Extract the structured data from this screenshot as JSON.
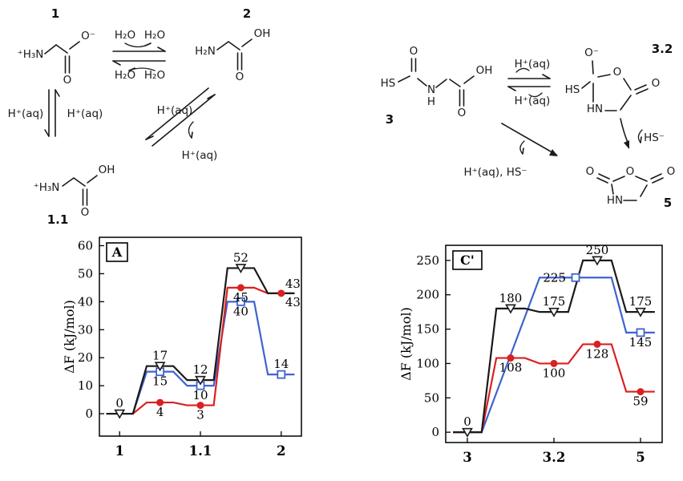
{
  "figure": {
    "background": "#ffffff"
  },
  "schemes": {
    "glycine": {
      "c1": "1",
      "c2": "2",
      "c11": "1.1",
      "ammonium": "⁺H₃N",
      "amine": "H₂N",
      "o": "O",
      "o_minus": "O⁻",
      "oh": "OH",
      "water": "H₂O",
      "proton": "H⁺(aq)"
    },
    "nca": {
      "c3": "3",
      "c32": "3.2",
      "c5": "5",
      "hs": "HS",
      "o": "O",
      "o_minus": "O⁻",
      "oh": "OH",
      "n": "N",
      "h": "H",
      "hn": "HN",
      "proton": "H⁺(aq)",
      "hs_minus": "HS⁻",
      "proton_hs": "H⁺(aq), HS⁻"
    }
  },
  "chart_data": [
    {
      "type": "line",
      "panel": "A",
      "ylabel": "ΔF (kJ/mol)",
      "ylim": [
        -8,
        63
      ],
      "yticks": [
        0,
        10,
        20,
        30,
        40,
        50,
        60
      ],
      "categories": [
        "1",
        "1.1",
        "2"
      ],
      "xtick_slots": [
        0,
        2,
        4
      ],
      "n_slots": 5,
      "grid": false,
      "legend": "none",
      "series": [
        {
          "name": "blue",
          "color": "#3f63cf",
          "marker": "square",
          "plateaus": [
            {
              "slots": [
                0
              ],
              "value": 0,
              "marker": false
            },
            {
              "slots": [
                1
              ],
              "value": 15,
              "label": "15",
              "label_pos": "below",
              "marker": true
            },
            {
              "slots": [
                2
              ],
              "value": 10,
              "label": "10",
              "label_pos": "below",
              "marker": true
            },
            {
              "slots": [
                3
              ],
              "value": 40,
              "label": "40",
              "label_pos": "below",
              "marker": true
            },
            {
              "slots": [
                4
              ],
              "value": 14,
              "label": "14",
              "label_pos": "above",
              "marker": true
            }
          ]
        },
        {
          "name": "red",
          "color": "#d92121",
          "marker": "circle",
          "plateaus": [
            {
              "slots": [
                0
              ],
              "value": 0,
              "marker": false
            },
            {
              "slots": [
                1
              ],
              "value": 4,
              "label": "4",
              "label_pos": "below",
              "marker": true
            },
            {
              "slots": [
                2
              ],
              "value": 3,
              "label": "3",
              "label_pos": "below",
              "marker": true
            },
            {
              "slots": [
                3
              ],
              "value": 45,
              "label": "45",
              "label_pos": "below",
              "marker": true
            },
            {
              "slots": [
                4
              ],
              "value": 43,
              "label": "43",
              "label_pos": "right-below",
              "marker": true
            }
          ]
        },
        {
          "name": "black",
          "color": "#1a1a1a",
          "marker": "triangle-down",
          "plateaus": [
            {
              "slots": [
                0
              ],
              "value": 0,
              "label": "0",
              "label_pos": "above",
              "marker": true
            },
            {
              "slots": [
                1
              ],
              "value": 17,
              "label": "17",
              "label_pos": "above",
              "marker": true
            },
            {
              "slots": [
                2
              ],
              "value": 12,
              "label": "12",
              "label_pos": "above",
              "marker": true
            },
            {
              "slots": [
                3
              ],
              "value": 52,
              "label": "52",
              "label_pos": "above",
              "marker": true
            },
            {
              "slots": [
                4
              ],
              "value": 43,
              "label": "43",
              "label_pos": "right-above",
              "marker": false
            }
          ]
        }
      ]
    },
    {
      "type": "line",
      "panel": "C'",
      "ylabel": "ΔF (kJ/mol)",
      "ylim": [
        -15,
        272
      ],
      "yticks": [
        0,
        50,
        100,
        150,
        200,
        250
      ],
      "categories": [
        "3",
        "3.2",
        "5"
      ],
      "xtick_slots": [
        0,
        2,
        4
      ],
      "n_slots": 5,
      "grid": false,
      "legend": "none",
      "series": [
        {
          "name": "blue",
          "color": "#3f63cf",
          "marker": "square",
          "plateaus": [
            {
              "slots": [
                0
              ],
              "value": 0,
              "marker": false
            },
            {
              "slots": [
                2,
                3
              ],
              "value": 225,
              "label": "225",
              "label_pos": "marker-left",
              "marker": true
            },
            {
              "slots": [
                4
              ],
              "value": 145,
              "label": "145",
              "label_pos": "below",
              "marker": true
            }
          ]
        },
        {
          "name": "red",
          "color": "#d92121",
          "marker": "circle",
          "plateaus": [
            {
              "slots": [
                0
              ],
              "value": 0,
              "marker": false
            },
            {
              "slots": [
                1
              ],
              "value": 108,
              "label": "108",
              "label_pos": "below",
              "marker": true
            },
            {
              "slots": [
                2
              ],
              "value": 100,
              "label": "100",
              "label_pos": "below",
              "marker": true
            },
            {
              "slots": [
                3
              ],
              "value": 128,
              "label": "128",
              "label_pos": "below",
              "marker": true
            },
            {
              "slots": [
                4
              ],
              "value": 59,
              "label": "59",
              "label_pos": "below",
              "marker": true
            }
          ]
        },
        {
          "name": "black",
          "color": "#1a1a1a",
          "marker": "triangle-down",
          "plateaus": [
            {
              "slots": [
                0
              ],
              "value": 0,
              "label": "0",
              "label_pos": "above",
              "marker": true
            },
            {
              "slots": [
                1
              ],
              "value": 180,
              "label": "180",
              "label_pos": "above",
              "marker": true
            },
            {
              "slots": [
                2
              ],
              "value": 175,
              "label": "175",
              "label_pos": "above",
              "marker": true
            },
            {
              "slots": [
                3
              ],
              "value": 250,
              "label": "250",
              "label_pos": "above",
              "marker": true
            },
            {
              "slots": [
                4
              ],
              "value": 175,
              "label": "175",
              "label_pos": "above",
              "marker": true
            }
          ]
        }
      ]
    }
  ]
}
